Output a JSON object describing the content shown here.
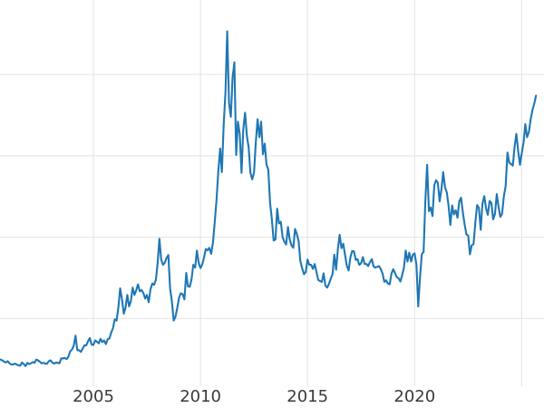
{
  "chart_data": {
    "type": "line",
    "title": "",
    "xlabel": "",
    "ylabel": "",
    "grid": true,
    "legend": false,
    "colors": {
      "line": "#1f77b4",
      "grid": "#e7e7e7",
      "background": "#ffffff",
      "tick_label": "#3a3a3a"
    },
    "x_axis": {
      "range": [
        2000.64,
        2026.04
      ],
      "ticks": [
        {
          "year": 2005,
          "label": "2005"
        },
        {
          "year": 2010,
          "label": "2010"
        },
        {
          "year": 2015,
          "label": "2015"
        },
        {
          "year": 2020,
          "label": "2020"
        },
        {
          "year": 2025,
          "label": ""
        }
      ]
    },
    "y_axis": {
      "range": [
        -1.0,
        49.16
      ],
      "gridline_values": [
        10,
        20,
        30,
        40
      ],
      "tick_labels_visible": false
    },
    "series": [
      {
        "name": "price",
        "frequency": "monthly",
        "start": {
          "year": 2000,
          "month": 8
        },
        "values": [
          4.95,
          4.95,
          4.85,
          4.7,
          4.6,
          4.75,
          4.5,
          4.35,
          4.35,
          4.45,
          4.35,
          4.25,
          4.2,
          4.6,
          4.4,
          4.15,
          4.55,
          4.4,
          4.5,
          4.65,
          4.55,
          4.95,
          4.85,
          4.7,
          4.5,
          4.55,
          4.45,
          4.45,
          4.75,
          4.85,
          4.6,
          4.45,
          4.6,
          4.55,
          4.5,
          5.1,
          5.1,
          5.15,
          5.0,
          5.3,
          5.95,
          6.2,
          6.65,
          7.9,
          6.1,
          6.1,
          5.9,
          6.3,
          6.7,
          6.7,
          7.2,
          7.6,
          6.8,
          6.75,
          7.3,
          7.15,
          6.95,
          7.5,
          7.1,
          7.3,
          6.85,
          7.45,
          7.55,
          8.3,
          8.8,
          9.9,
          9.75,
          11.4,
          13.7,
          12.4,
          10.6,
          11.3,
          12.9,
          11.5,
          12.1,
          13.8,
          12.9,
          13.45,
          14.2,
          13.35,
          13.5,
          13.15,
          12.45,
          12.9,
          12.0,
          13.6,
          14.3,
          14.15,
          14.75,
          16.85,
          19.8,
          17.25,
          16.6,
          16.85,
          17.45,
          17.8,
          13.7,
          12.1,
          9.75,
          10.2,
          11.3,
          12.55,
          13.1,
          13.0,
          12.35,
          15.6,
          13.95,
          13.9,
          14.85,
          16.6,
          16.25,
          18.35,
          16.85,
          16.2,
          16.65,
          17.5,
          18.55,
          18.4,
          18.7,
          17.95,
          19.35,
          21.95,
          24.55,
          28.15,
          30.9,
          28.0,
          33.8,
          37.9,
          45.3,
          36.5,
          34.8,
          39.6,
          41.5,
          30.1,
          34.2,
          32.7,
          27.9,
          33.25,
          35.3,
          32.45,
          31.0,
          27.9,
          27.1,
          27.95,
          31.6,
          34.5,
          32.3,
          34.2,
          30.2,
          31.5,
          28.95,
          28.3,
          24.2,
          22.25,
          19.6,
          19.7,
          23.5,
          21.7,
          21.9,
          20.0,
          19.45,
          19.1,
          21.25,
          19.75,
          19.0,
          18.7,
          21.0,
          20.4,
          19.45,
          17.05,
          16.15,
          15.45,
          15.7,
          17.25,
          16.6,
          16.6,
          16.1,
          16.7,
          15.7,
          14.75,
          14.6,
          14.5,
          15.55,
          14.05,
          13.8,
          14.25,
          14.9,
          15.45,
          17.85,
          16.0,
          18.6,
          20.3,
          18.65,
          19.2,
          17.8,
          16.5,
          15.9,
          17.55,
          18.3,
          18.25,
          17.2,
          17.3,
          16.6,
          16.8,
          17.55,
          16.7,
          16.7,
          16.45,
          16.95,
          17.3,
          16.4,
          16.25,
          16.35,
          16.45,
          16.1,
          15.55,
          14.5,
          14.7,
          14.3,
          14.2,
          15.5,
          16.05,
          15.6,
          15.1,
          14.95,
          14.55,
          15.3,
          16.25,
          18.35,
          17.0,
          18.1,
          17.0,
          17.85,
          18.0,
          16.65,
          11.5,
          15.0,
          17.9,
          18.2,
          24.4,
          28.9,
          23.2,
          23.65,
          22.6,
          26.4,
          27.0,
          26.7,
          24.4,
          25.9,
          28.0,
          26.15,
          25.5,
          23.9,
          21.5,
          23.9,
          22.8,
          23.3,
          22.4,
          24.4,
          24.85,
          23.05,
          21.6,
          20.35,
          20.2,
          17.9,
          19.0,
          19.15,
          21.8,
          23.95,
          23.6,
          20.9,
          24.1,
          25.05,
          23.55,
          22.75,
          24.45,
          24.2,
          22.2,
          22.85,
          25.3,
          23.8,
          22.5,
          22.9,
          25.0,
          26.3,
          30.4,
          29.15,
          29.0,
          28.8,
          31.15,
          32.7,
          30.6,
          28.9,
          30.3,
          31.6,
          33.9,
          32.3,
          32.9,
          34.5,
          35.6,
          36.4,
          37.4
        ]
      }
    ]
  }
}
